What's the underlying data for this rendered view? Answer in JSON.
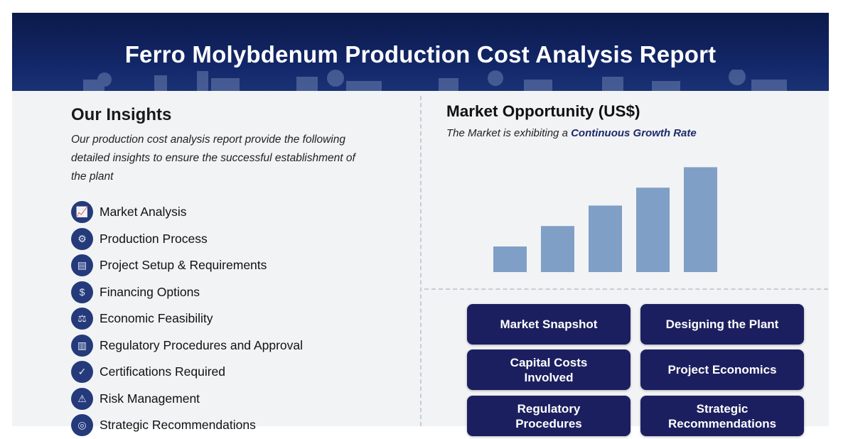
{
  "banner": {
    "title": "Ferro Molybdenum Production Cost Analysis Report"
  },
  "insights": {
    "title": "Our Insights",
    "description": "Our production cost analysis report provide the following detailed insights to ensure the successful establishment of the plant",
    "items": [
      {
        "label": "Market Analysis",
        "icon": "chart-icon"
      },
      {
        "label": "Production Process",
        "icon": "gear-icon"
      },
      {
        "label": "Project Setup & Requirements",
        "icon": "clipboard-icon"
      },
      {
        "label": "Financing Options",
        "icon": "money-icon"
      },
      {
        "label": "Economic Feasibility",
        "icon": "scale-icon"
      },
      {
        "label": "Regulatory Procedures and Approval",
        "icon": "document-icon"
      },
      {
        "label": "Certifications Required",
        "icon": "certificate-icon"
      },
      {
        "label": "Risk Management",
        "icon": "warning-icon"
      },
      {
        "label": "Strategic Recommendations",
        "icon": "target-icon"
      }
    ]
  },
  "market": {
    "title": "Market Opportunity (US$)",
    "subtitle_prefix": "The Market is exhibiting a ",
    "subtitle_emphasis": "Continuous Growth Rate"
  },
  "chart_data": {
    "type": "bar",
    "values": [
      1.0,
      1.8,
      2.6,
      3.3,
      4.1
    ],
    "bar_color": "#7f9fc6",
    "grid": false
  },
  "buttons": [
    "Market Snapshot",
    "Designing the Plant",
    "Capital Costs Involved",
    "Project Economics",
    "Regulatory Procedures",
    "Strategic Recommendations"
  ],
  "colors": {
    "banner": "#13286a",
    "button": "#1c1f5f",
    "accent_text": "#1e2a6b"
  }
}
